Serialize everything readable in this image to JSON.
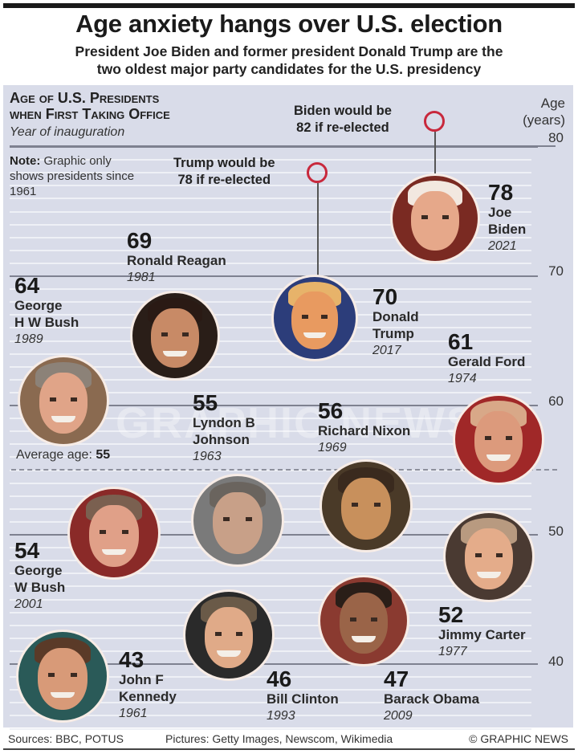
{
  "header": {
    "title": "Age anxiety hangs over U.S. election",
    "subtitle_line1": "President Joe Biden and former president Donald Trump are the",
    "subtitle_line2": "two oldest major party candidates for the U.S. presidency"
  },
  "panel": {
    "title_line1": "Age of U.S. Presidents",
    "title_line2": "when First Taking Office",
    "subtitle": "Year of inauguration",
    "note_bold": "Note:",
    "note_text": "Graphic only shows presidents since 1961",
    "axis_label_line1": "Age",
    "axis_label_line2": "(years)",
    "average_label": "Average age:",
    "average_value": "55",
    "watermark": "GRAPHIC NEWS"
  },
  "annotations": {
    "biden": {
      "line1": "Biden would be",
      "line2": "82 if re-elected"
    },
    "trump": {
      "line1": "Trump would be",
      "line2": "78 if re-elected"
    }
  },
  "footer": {
    "sources": "Sources: BBC, POTUS",
    "pictures": "Pictures: Getty Images, Newscom, Wikimedia",
    "copyright": "© GRAPHIC NEWS"
  },
  "colors": {
    "panel_bg": "#d9dce9",
    "ring": "#c8283c",
    "gridline": "#eef0f6",
    "major_gridline": "#7e8190"
  },
  "chart_data": {
    "type": "scatter",
    "title": "Age of U.S. Presidents when First Taking Office",
    "subtitle": "Year of inauguration",
    "ylabel": "Age (years)",
    "ylim": [
      40,
      80
    ],
    "yticks": [
      40,
      50,
      60,
      70,
      80
    ],
    "average": 55,
    "points": [
      {
        "name": "John F Kennedy",
        "year": "1961",
        "age": 43
      },
      {
        "name": "Lyndon B Johnson",
        "year": "1963",
        "age": 55
      },
      {
        "name": "Richard Nixon",
        "year": "1969",
        "age": 56
      },
      {
        "name": "Gerald Ford",
        "year": "1974",
        "age": 61
      },
      {
        "name": "Jimmy Carter",
        "year": "1977",
        "age": 52
      },
      {
        "name": "Ronald Reagan",
        "year": "1981",
        "age": 69
      },
      {
        "name": "George H W Bush",
        "year": "1989",
        "age": 64
      },
      {
        "name": "Bill Clinton",
        "year": "1993",
        "age": 46
      },
      {
        "name": "George W Bush",
        "year": "2001",
        "age": 54
      },
      {
        "name": "Barack Obama",
        "year": "2009",
        "age": 47
      },
      {
        "name": "Donald Trump",
        "year": "2017",
        "age": 70
      },
      {
        "name": "Joe Biden",
        "year": "2021",
        "age": 78
      }
    ],
    "projections": [
      {
        "name": "Biden",
        "age": 82,
        "label": "Biden would be 82 if re-elected"
      },
      {
        "name": "Trump",
        "age": 78,
        "label": "Trump would be 78 if re-elected"
      }
    ]
  },
  "presidents": {
    "biden": {
      "age": "78",
      "name1": "Joe",
      "name2": "Biden",
      "year": "2021"
    },
    "trump": {
      "age": "70",
      "name1": "Donald",
      "name2": "Trump",
      "year": "2017"
    },
    "reagan": {
      "age": "69",
      "name": "Ronald Reagan",
      "year": "1981"
    },
    "hwbush": {
      "age": "64",
      "name1": "George",
      "name2": "H W Bush",
      "year": "1989"
    },
    "ford": {
      "age": "61",
      "name": "Gerald Ford",
      "year": "1974"
    },
    "nixon": {
      "age": "56",
      "name": "Richard Nixon",
      "year": "1969"
    },
    "johnson": {
      "age": "55",
      "name1": "Lyndon B",
      "name2": "Johnson",
      "year": "1963"
    },
    "wbush": {
      "age": "54",
      "name1": "George",
      "name2": "W Bush",
      "year": "2001"
    },
    "carter": {
      "age": "52",
      "name": "Jimmy Carter",
      "year": "1977"
    },
    "obama": {
      "age": "47",
      "name": "Barack Obama",
      "year": "2009"
    },
    "clinton": {
      "age": "46",
      "name": "Bill Clinton",
      "year": "1993"
    },
    "kennedy": {
      "age": "43",
      "name1": "John F",
      "name2": "Kennedy",
      "year": "1961"
    }
  },
  "ticks": [
    "80",
    "70",
    "60",
    "50",
    "40"
  ]
}
